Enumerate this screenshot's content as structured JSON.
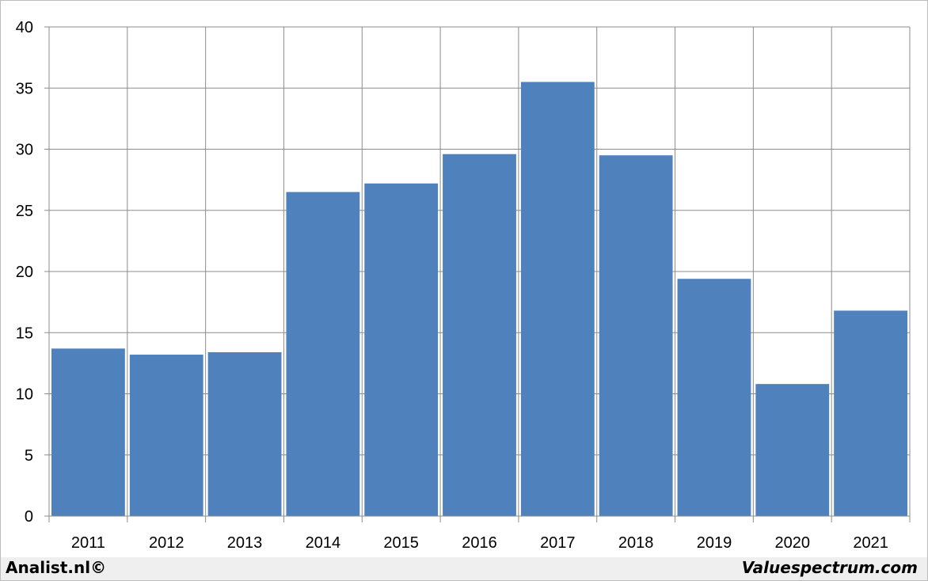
{
  "chart_data": {
    "type": "bar",
    "categories": [
      "2011",
      "2012",
      "2013",
      "2014",
      "2015",
      "2016",
      "2017",
      "2018",
      "2019",
      "2020",
      "2021"
    ],
    "values": [
      13.7,
      13.2,
      13.4,
      26.5,
      27.2,
      29.6,
      35.5,
      29.5,
      19.4,
      10.8,
      16.8
    ],
    "title": "",
    "xlabel": "",
    "ylabel": "",
    "ylim": [
      0,
      40
    ],
    "yticks": [
      0,
      5,
      10,
      15,
      20,
      25,
      30,
      35,
      40
    ],
    "grid": true,
    "bar_color": "#4f81bd",
    "gridline_color": "#8c8c8c"
  },
  "footer": {
    "left_text": "Analist.nl©",
    "right_text": "Valuespectrum.com"
  }
}
